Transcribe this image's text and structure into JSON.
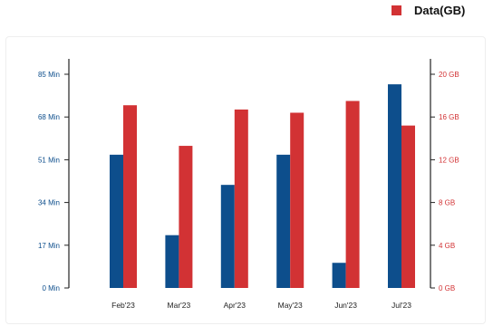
{
  "legend": {
    "label": "Data(GB)",
    "color": "#d23234"
  },
  "colors": {
    "left_series": "#0d4e8c",
    "right_series": "#d23234",
    "left_axis_text": "#0d4e8c",
    "right_axis_text": "#d23234"
  },
  "chart_data": {
    "type": "bar",
    "categories": [
      "Feb'23",
      "Mar'23",
      "Apr'23",
      "May'23",
      "Jun'23",
      "Jul'23"
    ],
    "series": [
      {
        "axis": "left",
        "values": [
          53,
          21,
          41,
          53,
          10,
          81
        ]
      },
      {
        "name": "Data(GB)",
        "axis": "right",
        "values": [
          17.1,
          13.3,
          16.7,
          16.4,
          17.5,
          15.2
        ]
      }
    ],
    "left_axis": {
      "ticks": [
        "0 Min",
        "17 Min",
        "34 Min",
        "51 Min",
        "68 Min",
        "85 Min"
      ],
      "ylim": [
        0,
        85
      ]
    },
    "right_axis": {
      "ticks": [
        "0 GB",
        "4 GB",
        "8 GB",
        "12 GB",
        "16 GB",
        "20 GB"
      ],
      "ylim": [
        0,
        20
      ]
    },
    "grid": false,
    "legend_position": "top-right"
  }
}
